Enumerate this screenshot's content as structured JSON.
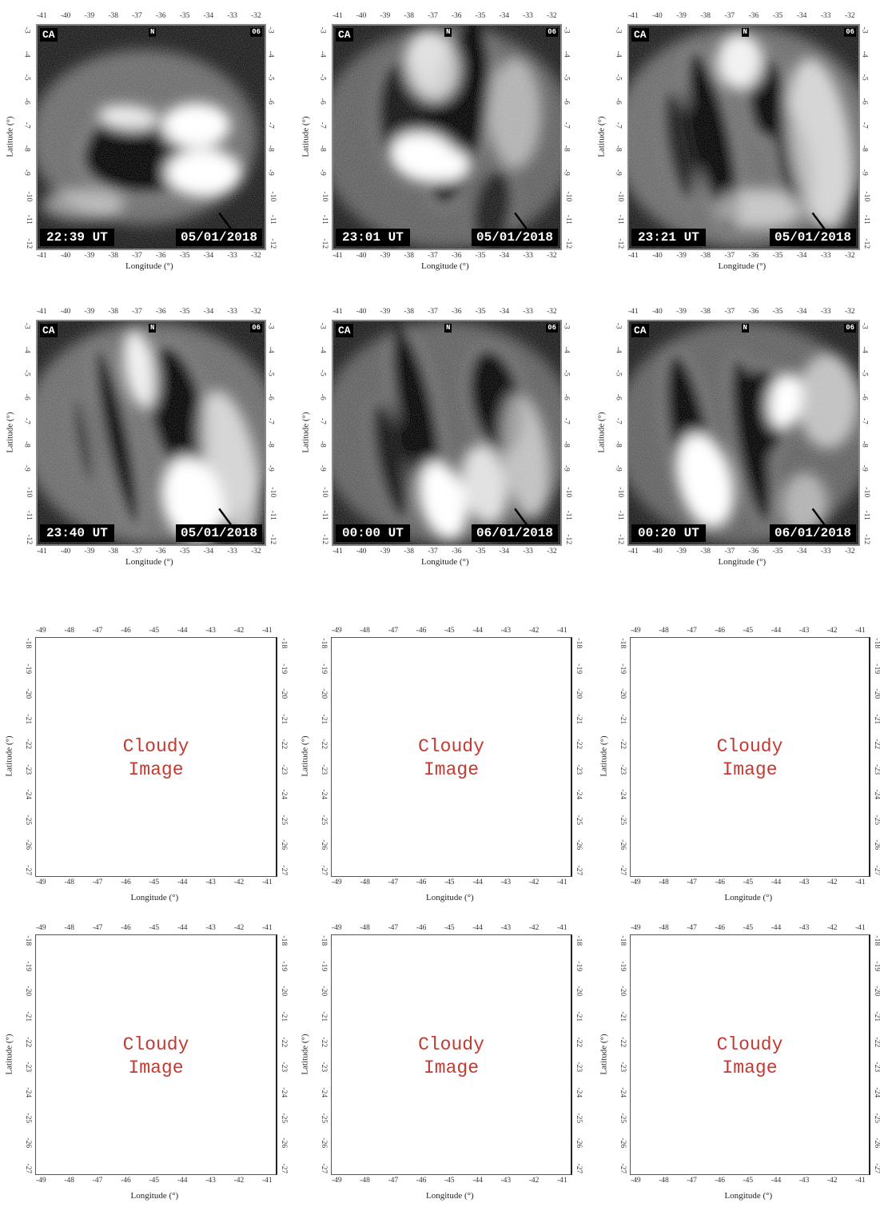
{
  "axis_labels": {
    "longitude": "Longitude (°)",
    "latitude": "Latitude (°)"
  },
  "top_panels": [
    {
      "station": "CA",
      "heading": "N",
      "sector": "06",
      "time": "22:39 UT",
      "date": "05/01/2018"
    },
    {
      "station": "CA",
      "heading": "N",
      "sector": "06",
      "time": "23:01 UT",
      "date": "05/01/2018"
    },
    {
      "station": "CA",
      "heading": "N",
      "sector": "06",
      "time": "23:21 UT",
      "date": "05/01/2018"
    },
    {
      "station": "CA",
      "heading": "N",
      "sector": "06",
      "time": "23:40 UT",
      "date": "05/01/2018"
    },
    {
      "station": "CA",
      "heading": "N",
      "sector": "06",
      "time": "00:00 UT",
      "date": "06/01/2018"
    },
    {
      "station": "CA",
      "heading": "N",
      "sector": "06",
      "time": "00:20 UT",
      "date": "06/01/2018"
    }
  ],
  "top_lon_ticks": [
    "-41",
    "-40",
    "-39",
    "-38",
    "-37",
    "-36",
    "-35",
    "-34",
    "-33",
    "-32"
  ],
  "top_lat_ticks": [
    "-3",
    "-4",
    "-5",
    "-6",
    "-7",
    "-8",
    "-9",
    "-10",
    "-11",
    "-12"
  ],
  "bottom_panels": [
    {
      "line1": "Cloudy",
      "line2": "Image"
    },
    {
      "line1": "Cloudy",
      "line2": "Image"
    },
    {
      "line1": "Cloudy",
      "line2": "Image"
    },
    {
      "line1": "Cloudy",
      "line2": "Image"
    },
    {
      "line1": "Cloudy",
      "line2": "Image"
    },
    {
      "line1": "Cloudy",
      "line2": "Image"
    }
  ],
  "bottom_lon_ticks": [
    "-49",
    "-48",
    "-47",
    "-46",
    "-45",
    "-44",
    "-43",
    "-42",
    "-41"
  ],
  "bottom_lat_ticks": [
    "-18",
    "-19",
    "-20",
    "-21",
    "-22",
    "-23",
    "-24",
    "-25",
    "-26",
    "-27"
  ],
  "colors": {
    "cloudy_text": "#c43a32",
    "badge_bg": "#000000",
    "badge_fg": "#ffffff"
  }
}
